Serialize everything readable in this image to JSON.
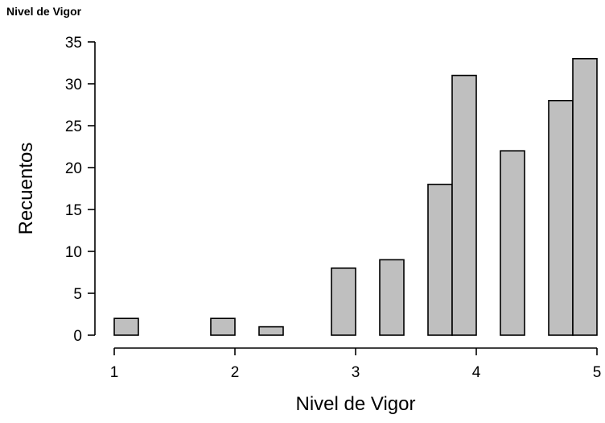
{
  "title": "Nivel de Vigor",
  "chart_data": {
    "type": "bar",
    "title": "Nivel de Vigor",
    "xlabel": "Nivel de Vigor",
    "ylabel": "Recuentos",
    "xlim": [
      1,
      5
    ],
    "ylim": [
      0,
      35
    ],
    "xticks": [
      1,
      2,
      3,
      4,
      5
    ],
    "yticks": [
      0,
      5,
      10,
      15,
      20,
      25,
      30,
      35
    ],
    "grid": false,
    "bar_color": "#bfbfbf",
    "bins": [
      {
        "start": 1.0,
        "end": 1.2,
        "count": 2
      },
      {
        "start": 1.2,
        "end": 1.4,
        "count": 0
      },
      {
        "start": 1.4,
        "end": 1.6,
        "count": 0
      },
      {
        "start": 1.6,
        "end": 1.8,
        "count": 0
      },
      {
        "start": 1.8,
        "end": 2.0,
        "count": 2
      },
      {
        "start": 2.0,
        "end": 2.2,
        "count": 0
      },
      {
        "start": 2.2,
        "end": 2.4,
        "count": 1
      },
      {
        "start": 2.4,
        "end": 2.6,
        "count": 0
      },
      {
        "start": 2.6,
        "end": 2.8,
        "count": 0
      },
      {
        "start": 2.8,
        "end": 3.0,
        "count": 8
      },
      {
        "start": 3.0,
        "end": 3.2,
        "count": 0
      },
      {
        "start": 3.2,
        "end": 3.4,
        "count": 9
      },
      {
        "start": 3.4,
        "end": 3.6,
        "count": 0
      },
      {
        "start": 3.6,
        "end": 3.8,
        "count": 18
      },
      {
        "start": 3.8,
        "end": 4.0,
        "count": 31
      },
      {
        "start": 4.0,
        "end": 4.2,
        "count": 0
      },
      {
        "start": 4.2,
        "end": 4.4,
        "count": 22
      },
      {
        "start": 4.4,
        "end": 4.6,
        "count": 0
      },
      {
        "start": 4.6,
        "end": 4.8,
        "count": 28
      },
      {
        "start": 4.8,
        "end": 5.0,
        "count": 33
      }
    ]
  }
}
